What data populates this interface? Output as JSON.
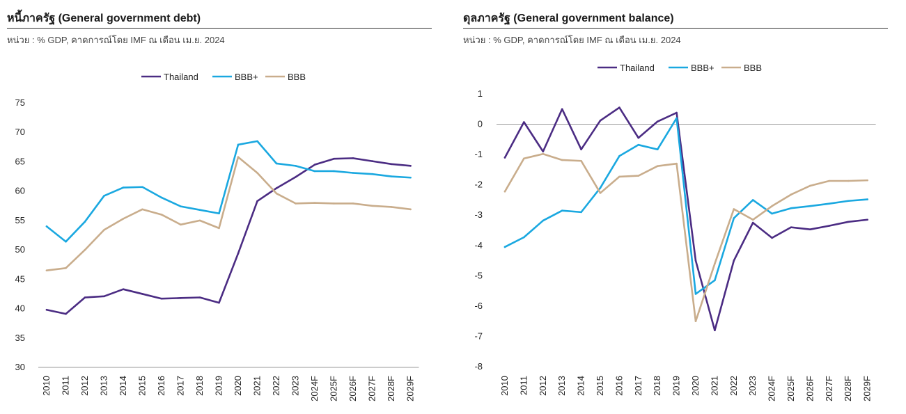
{
  "colors": {
    "Thailand": "#4b2c83",
    "BBB+": "#1aa8e0",
    "BBB": "#c9ad8c",
    "axis": "#999999"
  },
  "chart_data": [
    {
      "type": "line",
      "title": "หนี้ภาครัฐ (General government debt)",
      "subtitle": "หน่วย : % GDP, คาดการณ์โดย IMF ณ เดือน เม.ย. 2024",
      "categories": [
        "2010",
        "2011",
        "2012",
        "2013",
        "2014",
        "2015",
        "2016",
        "2017",
        "2018",
        "2019",
        "2020",
        "2021",
        "2022",
        "2023",
        "2024F",
        "2025F",
        "2026F",
        "2027F",
        "2028F",
        "2029F"
      ],
      "yticks": [
        30,
        35,
        40,
        45,
        50,
        55,
        60,
        65,
        70,
        75
      ],
      "ylim": [
        30,
        75
      ],
      "legend": "top-center",
      "series": [
        {
          "name": "Thailand",
          "values": [
            39.8,
            39.1,
            41.9,
            42.1,
            43.3,
            42.5,
            41.7,
            41.8,
            41.9,
            41.0,
            49.4,
            58.3,
            60.5,
            62.4,
            64.5,
            65.5,
            65.6,
            65.1,
            64.6,
            64.3
          ]
        },
        {
          "name": "BBB+",
          "values": [
            54.0,
            51.4,
            54.8,
            59.2,
            60.6,
            60.7,
            58.9,
            57.4,
            56.8,
            56.2,
            67.9,
            68.5,
            64.7,
            64.3,
            63.4,
            63.4,
            63.1,
            62.9,
            62.5,
            62.3
          ]
        },
        {
          "name": "BBB",
          "values": [
            46.5,
            46.9,
            50.0,
            53.4,
            55.3,
            56.9,
            56.0,
            54.3,
            55.0,
            53.7,
            65.8,
            63.1,
            59.6,
            57.9,
            58.0,
            57.9,
            57.9,
            57.5,
            57.3,
            56.9
          ]
        }
      ]
    },
    {
      "type": "line",
      "title": "ดุลภาครัฐ (General government balance)",
      "subtitle": "หน่วย : % GDP, คาดการณ์โดย IMF ณ เดือน เม.ย. 2024",
      "categories": [
        "2010",
        "2011",
        "2012",
        "2013",
        "2014",
        "2015",
        "2016",
        "2017",
        "2018",
        "2019",
        "2020",
        "2021",
        "2022",
        "2023",
        "2024F",
        "2025F",
        "2026F",
        "2027F",
        "2028F",
        "2029F"
      ],
      "yticks": [
        1,
        0,
        -1,
        -2,
        -3,
        -4,
        -5,
        -6,
        -7,
        -8
      ],
      "ylim": [
        -8,
        1
      ],
      "legend": "top-center",
      "series": [
        {
          "name": "Thailand",
          "values": [
            -1.1,
            0.07,
            -0.9,
            0.5,
            -0.83,
            0.12,
            0.55,
            -0.45,
            0.09,
            0.38,
            -4.5,
            -6.8,
            -4.5,
            -3.25,
            -3.75,
            -3.4,
            -3.47,
            -3.35,
            -3.22,
            -3.15
          ]
        },
        {
          "name": "BBB+",
          "values": [
            -4.05,
            -3.73,
            -3.18,
            -2.85,
            -2.9,
            -2.1,
            -1.05,
            -0.68,
            -0.83,
            0.2,
            -5.6,
            -5.15,
            -3.1,
            -2.5,
            -2.95,
            -2.77,
            -2.7,
            -2.62,
            -2.53,
            -2.48
          ]
        },
        {
          "name": "BBB",
          "values": [
            -2.22,
            -1.13,
            -0.98,
            -1.18,
            -1.21,
            -2.27,
            -1.73,
            -1.7,
            -1.38,
            -1.3,
            -6.5,
            -4.6,
            -2.8,
            -3.15,
            -2.7,
            -2.32,
            -2.03,
            -1.87,
            -1.87,
            -1.85
          ]
        }
      ]
    }
  ]
}
